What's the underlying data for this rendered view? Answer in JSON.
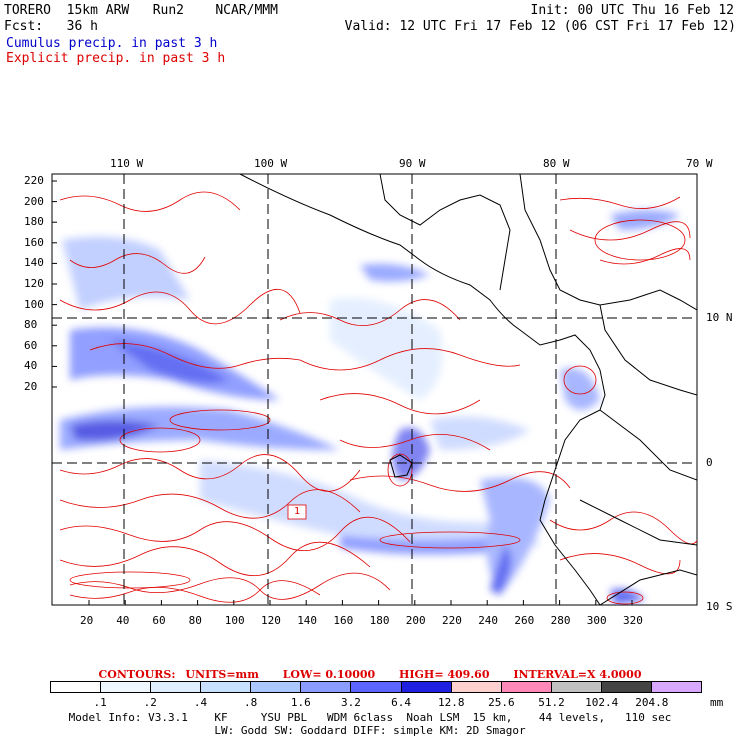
{
  "header": {
    "model": "TORERO  15km ARW   Run2    NCAR/MMM",
    "init": "Init: 00 UTC Thu 16 Feb 12",
    "fcst": "Fcst:   36 h",
    "valid": "Valid: 12 UTC Fri 17 Feb 12 (06 CST Fri 17 Feb 12)",
    "cumulus": "Cumulus precip. in past 3 h",
    "explicit": "Explicit precip. in past 3 h"
  },
  "axes": {
    "lon_labels": [
      "110 W",
      "100 W",
      "90 W",
      "80 W",
      "70 W"
    ],
    "lat_labels": [
      "10 N",
      "0",
      "10 S"
    ],
    "y_ticks": [
      "220",
      "200",
      "180",
      "160",
      "140",
      "120",
      "100",
      "80",
      "60",
      "40",
      "20"
    ],
    "x_ticks": [
      "20",
      "40",
      "60",
      "80",
      "100",
      "120",
      "140",
      "160",
      "180",
      "200",
      "220",
      "240",
      "260",
      "280",
      "300",
      "320"
    ]
  },
  "contour_info": {
    "label": "CONTOURS:",
    "units": "UNITS=mm",
    "low": "LOW= 0.10000",
    "high": "HIGH=  409.60",
    "interval": "INTERVAL=X  4.0000"
  },
  "map_label": "1",
  "colorbar": {
    "labels": [
      ".1",
      ".2",
      ".4",
      ".8",
      "1.6",
      "3.2",
      "6.4",
      "12.8",
      "25.6",
      "51.2",
      "102.4",
      "204.8"
    ],
    "unit": "mm",
    "colors": [
      "#ffffff",
      "#f0f8ff",
      "#e0efff",
      "#c8e0ff",
      "#aac8ff",
      "#8a9cff",
      "#5a66ff",
      "#2020e0",
      "#ffd0d0",
      "#ff88b8",
      "#c0c0c0",
      "#444444",
      "#d8a8ff"
    ]
  },
  "footer": {
    "line1": "Model Info: V3.3.1    KF     YSU PBL   WDM 6class  Noah LSM  15 km,    44 levels,   110 sec",
    "line2": "LW: Godd SW: Goddard DIFF: simple KM: 2D Smagor"
  }
}
